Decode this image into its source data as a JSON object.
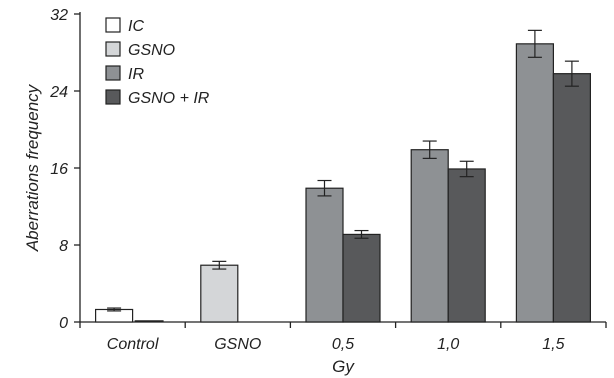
{
  "chart_data": {
    "type": "bar",
    "title": "",
    "xlabel": "Gy",
    "ylabel": "Aberrations frequency",
    "ylim": [
      0,
      32
    ],
    "yticks": [
      0,
      8,
      16,
      24,
      32
    ],
    "grid": false,
    "legend_position": "top-left",
    "categories": [
      "Control",
      "GSNO",
      "0,5",
      "1,0",
      "1,5"
    ],
    "series": [
      {
        "name": "IC",
        "color": "#ffffff",
        "values": [
          1.3,
          null,
          null,
          null,
          null
        ],
        "errors": [
          0.15,
          null,
          null,
          null,
          null
        ]
      },
      {
        "name": "GSNO",
        "color": "#d4d6d8",
        "values": [
          null,
          5.9,
          null,
          null,
          null
        ],
        "errors": [
          null,
          0.4,
          null,
          null,
          null
        ]
      },
      {
        "name": "IR",
        "color": "#8e9194",
        "values": [
          null,
          null,
          13.9,
          17.9,
          28.9
        ],
        "errors": [
          null,
          null,
          0.8,
          0.9,
          1.4
        ]
      },
      {
        "name": "GSNO + IR",
        "color": "#58595b",
        "values": [
          null,
          null,
          9.1,
          15.9,
          25.8
        ],
        "errors": [
          null,
          null,
          0.4,
          0.8,
          1.3
        ]
      }
    ]
  }
}
